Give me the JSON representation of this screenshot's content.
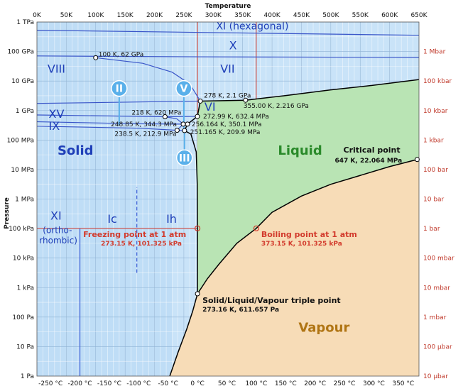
{
  "chart_data": {
    "type": "phase-diagram",
    "title": "Temperature",
    "ylabel": "Pressure",
    "x_kelvin": {
      "min": 0,
      "max": 650,
      "ticks": [
        "0K",
        "50K",
        "100K",
        "150K",
        "200K",
        "250K",
        "300K",
        "350K",
        "400K",
        "450K",
        "500K",
        "550K",
        "600K",
        "650K"
      ]
    },
    "x_celsius_ticks": [
      "-250 °C",
      "-200 °C",
      "-150 °C",
      "-100 °C",
      "-50 °C",
      "0 °C",
      "50 °C",
      "100 °C",
      "150 °C",
      "200 °C",
      "250 °C",
      "300 °C",
      "350 °C"
    ],
    "x_celsius_values": [
      -250,
      -200,
      -150,
      -100,
      -50,
      0,
      50,
      100,
      150,
      200,
      250,
      300,
      350
    ],
    "y_pa_log10": {
      "min": 0,
      "max": 12
    },
    "y_left_ticks": [
      "1 TPa",
      "100 GPa",
      "10 GPa",
      "1 GPa",
      "100 MPa",
      "10 MPa",
      "1 MPa",
      "100 kPa",
      "10 kPa",
      "1 kPa",
      "100 Pa",
      "10 Pa",
      "1 Pa"
    ],
    "y_right_ticks": [
      "1 Mbar",
      "100 kbar",
      "10 kbar",
      "1 kbar",
      "100 bar",
      "10 bar",
      "1 bar",
      "100 mbar",
      "10 mbar",
      "1 mbar",
      "100 μbar",
      "10 μbar"
    ],
    "y_right_log10": [
      11,
      10,
      9,
      8,
      7,
      6,
      5,
      4,
      3,
      2,
      1,
      0
    ],
    "colors": {
      "solid": "#c9e3f8",
      "liquid": "#b9e4b4",
      "vapour": "#f7dcb7",
      "line": "#000000",
      "phase_line": "#3a55c8",
      "red_grid": "#d23a2c",
      "right_axis_text": "#c0392b",
      "highlight": "#5ab0ea"
    },
    "regions": [
      {
        "label": "Solid",
        "color": "#1f3fb8"
      },
      {
        "label": "Liquid",
        "color": "#2a8a2a"
      },
      {
        "label": "Vapour",
        "color": "#b07514"
      }
    ],
    "phase_labels": [
      "XI (hexagonal)",
      "X",
      "VII",
      "VIII",
      "VI",
      "XV",
      "IX",
      "XI",
      "(ortho-",
      "rhombic)",
      "Ic",
      "Ih"
    ],
    "circled_labels": [
      "II",
      "V",
      "III"
    ],
    "annotations": [
      {
        "text": "100 K, 62 GPa",
        "T": 100,
        "logP": 10.79
      },
      {
        "text": "278 K, 2.1 GPa",
        "T": 278,
        "logP": 9.32
      },
      {
        "text": "355.00 K, 2.216 GPa",
        "T": 355,
        "logP": 9.35
      },
      {
        "text": "218 K, 620 MPa",
        "T": 218,
        "logP": 8.79
      },
      {
        "text": "272.99 K, 632.4 MPa",
        "T": 273,
        "logP": 8.8
      },
      {
        "text": "248.85 K, 344.3 MPa",
        "T": 249,
        "logP": 8.54
      },
      {
        "text": "256.164 K, 350.1 MPa",
        "T": 256,
        "logP": 8.54
      },
      {
        "text": "238.5 K, 212.9 MPa",
        "T": 238.5,
        "logP": 8.33
      },
      {
        "text": "251.165 K, 209.9 MPa",
        "T": 251,
        "logP": 8.32
      },
      {
        "text": "Critical point",
        "T": 647,
        "logP": 7.34
      },
      {
        "text": "647 K, 22.064 MPa",
        "T": 647,
        "logP": 7.34
      },
      {
        "text": "Freezing point at 1 atm",
        "T": 273.15,
        "logP": 5.006
      },
      {
        "text": "273.15 K, 101.325 kPa",
        "T": 273.15,
        "logP": 5.006
      },
      {
        "text": "Boiling point at 1 atm",
        "T": 373.15,
        "logP": 5.006
      },
      {
        "text": "373.15 K, 101.325 kPa",
        "T": 373.15,
        "logP": 5.006
      },
      {
        "text": "Solid/Liquid/Vapour triple point",
        "T": 273.16,
        "logP": 2.79
      },
      {
        "text": "273.16 K, 611.657 Pa",
        "T": 273.16,
        "logP": 2.79
      }
    ]
  }
}
